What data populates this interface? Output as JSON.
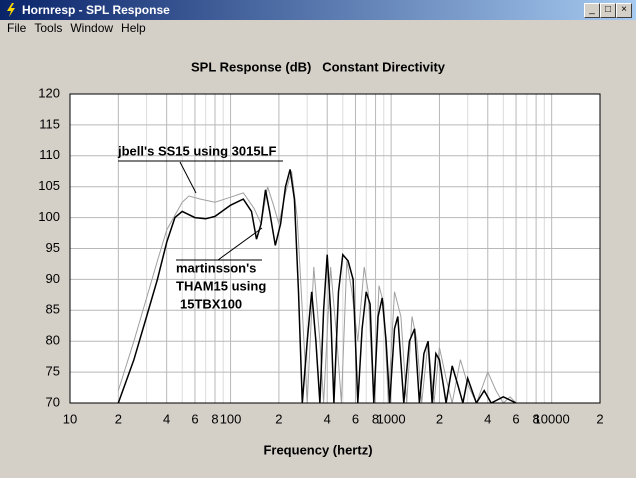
{
  "window": {
    "title": "Hornresp - SPL Response",
    "menu": [
      "File",
      "Tools",
      "Window",
      "Help"
    ]
  },
  "chart_data": {
    "type": "line",
    "title": "SPL Response (dB)   Constant Directivity",
    "x_label": "Frequency (hertz)",
    "log_x": true,
    "grid": true,
    "xlim": [
      10,
      20000
    ],
    "ylim": [
      70,
      120
    ],
    "xticks": [
      10,
      {
        "value": 20,
        "label": "2"
      },
      {
        "value": 40,
        "label": "4"
      },
      {
        "value": 60,
        "label": "6"
      },
      {
        "value": 80,
        "label": "8"
      },
      100,
      {
        "value": 200,
        "label": "2"
      },
      {
        "value": 400,
        "label": "4"
      },
      {
        "value": 600,
        "label": "6"
      },
      {
        "value": 800,
        "label": "8"
      },
      1000,
      {
        "value": 2000,
        "label": "2"
      },
      {
        "value": 4000,
        "label": "4"
      },
      {
        "value": 6000,
        "label": "6"
      },
      {
        "value": 8000,
        "label": "8"
      },
      10000,
      {
        "value": 20000,
        "label": "2"
      }
    ],
    "xminor": [
      30,
      50,
      70,
      90,
      300,
      500,
      700,
      900,
      3000,
      5000,
      7000,
      9000
    ],
    "yticks": [
      70,
      75,
      80,
      85,
      90,
      95,
      100,
      105,
      110,
      115,
      120
    ],
    "series": [
      {
        "color": "#a0a0a0",
        "x": [
          20,
          25,
          30,
          35,
          40,
          50,
          55,
          65,
          80,
          100,
          120,
          140,
          155,
          170,
          185,
          200,
          220,
          240,
          260,
          280,
          300,
          330,
          360,
          380,
          420,
          460,
          490,
          530,
          570,
          620,
          680,
          720,
          780,
          840,
          900,
          960,
          1050,
          1150,
          1250,
          1350,
          1450,
          1550,
          1700,
          1850,
          2000,
          2200,
          2400,
          2700,
          3000,
          3400,
          4000,
          4500,
          5000,
          5500,
          6000
        ],
        "values": [
          72,
          80,
          87,
          93,
          98,
          102.5,
          103.5,
          103,
          102.5,
          103.3,
          104,
          101.5,
          99,
          105,
          102,
          99,
          104,
          107.5,
          100,
          85,
          70,
          92,
          80,
          70,
          92,
          80,
          70,
          93,
          88,
          80,
          92,
          88,
          70,
          89,
          86,
          70,
          88,
          84,
          70,
          84,
          80,
          70,
          80,
          70,
          79,
          74,
          70,
          77,
          73,
          70,
          75,
          72,
          70,
          71,
          70
        ]
      },
      {
        "color": "#000000",
        "x": [
          20,
          25,
          30,
          35,
          40,
          45,
          50,
          60,
          70,
          80,
          100,
          120,
          135,
          145,
          155,
          165,
          175,
          190,
          205,
          220,
          235,
          250,
          265,
          280,
          300,
          320,
          340,
          360,
          380,
          400,
          420,
          440,
          470,
          500,
          540,
          580,
          620,
          660,
          700,
          740,
          780,
          830,
          880,
          930,
          980,
          1050,
          1100,
          1200,
          1300,
          1400,
          1500,
          1600,
          1700,
          1800,
          1900,
          2000,
          2200,
          2400,
          2600,
          2800,
          3000,
          3400,
          3800,
          4200,
          5000,
          6000
        ],
        "values": [
          70,
          77,
          84,
          90,
          96,
          100,
          101,
          100,
          99.8,
          100.2,
          102,
          103,
          101,
          96.5,
          99,
          104.5,
          101,
          95.5,
          99,
          105,
          107.8,
          103,
          88,
          70,
          80,
          88,
          80,
          70,
          85,
          94,
          85,
          70,
          88,
          94,
          93,
          90,
          70,
          82,
          88,
          86,
          70,
          84,
          87,
          80,
          70,
          82,
          84,
          70,
          80,
          82,
          70,
          78,
          80,
          70,
          78,
          77,
          70,
          76,
          73,
          70,
          74,
          70,
          72,
          70,
          71,
          70
        ]
      }
    ],
    "annotations": [
      {
        "lines": [
          "jbell's SS15 using 3015LF"
        ]
      },
      {
        "lines": [
          "martinsson's",
          "THAM15 using",
          "15TBX100"
        ]
      }
    ]
  }
}
